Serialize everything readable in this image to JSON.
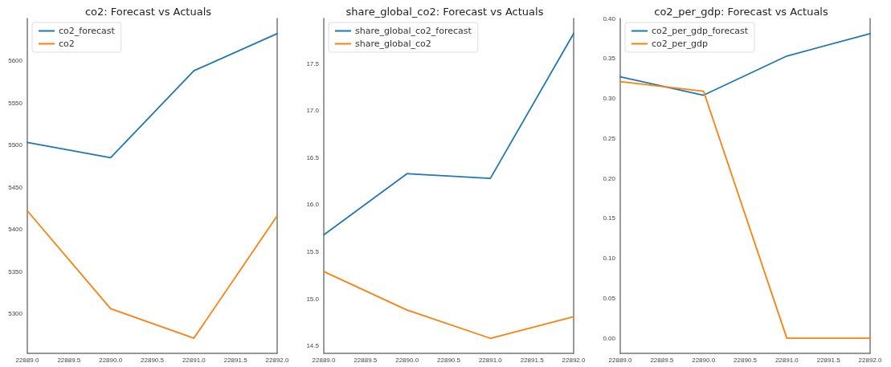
{
  "chart_data": [
    {
      "type": "line",
      "title": "co2: Forecast vs Actuals",
      "x": [
        22889,
        22890,
        22891,
        22892
      ],
      "series": [
        {
          "name": "co2_forecast",
          "color": "#1f77b4",
          "values": [
            5503,
            5485,
            5588,
            5632
          ]
        },
        {
          "name": "co2",
          "color": "#ff7f0e",
          "values": [
            5422,
            5306,
            5271,
            5416
          ]
        }
      ],
      "xlim": [
        22889,
        22892
      ],
      "xticks": [
        {
          "value": 22889,
          "label": "22889.0"
        },
        {
          "value": 22889.5,
          "label": "22889.5"
        },
        {
          "value": 22890,
          "label": "22890.0"
        },
        {
          "value": 22890.5,
          "label": "22890.5"
        },
        {
          "value": 22891,
          "label": "22891.0"
        },
        {
          "value": 22891.5,
          "label": "22891.5"
        },
        {
          "value": 22892,
          "label": "22892.0"
        }
      ],
      "ylim": [
        5253,
        5650
      ],
      "yticks": [
        5300,
        5350,
        5400,
        5450,
        5500,
        5550,
        5600
      ],
      "grid": false,
      "legend": "top left",
      "marker": "none",
      "line_style": "solid"
    },
    {
      "type": "line",
      "title": "share_global_co2: Forecast vs Actuals",
      "x": [
        22889,
        22890,
        22891,
        22892
      ],
      "series": [
        {
          "name": "share_global_co2_forecast",
          "color": "#1f77b4",
          "values": [
            15.68,
            16.33,
            16.28,
            17.82
          ]
        },
        {
          "name": "share_global_co2",
          "color": "#ff7f0e",
          "values": [
            15.29,
            14.88,
            14.58,
            14.81
          ]
        }
      ],
      "xlim": [
        22889,
        22892
      ],
      "xticks": [
        {
          "value": 22889,
          "label": "22889.0"
        },
        {
          "value": 22889.5,
          "label": "22889.5"
        },
        {
          "value": 22890,
          "label": "22890.0"
        },
        {
          "value": 22890.5,
          "label": "22890.5"
        },
        {
          "value": 22891,
          "label": "22891.0"
        },
        {
          "value": 22891.5,
          "label": "22891.5"
        },
        {
          "value": 22892,
          "label": "22892.0"
        }
      ],
      "ylim": [
        14.42,
        17.98
      ],
      "yticks": [
        {
          "value": 14.5,
          "label": "14.5"
        },
        {
          "value": 15,
          "label": "15.0"
        },
        {
          "value": 15.5,
          "label": "15.5"
        },
        {
          "value": 16,
          "label": "16.0"
        },
        {
          "value": 16.5,
          "label": "16.5"
        },
        {
          "value": 17,
          "label": "17.0"
        },
        {
          "value": 17.5,
          "label": "17.5"
        }
      ],
      "grid": false,
      "legend": "top left",
      "marker": "none",
      "line_style": "solid"
    },
    {
      "type": "line",
      "title": "co2_per_gdp: Forecast vs Actuals",
      "x": [
        22889,
        22890,
        22891,
        22892
      ],
      "series": [
        {
          "name": "co2_per_gdp_forecast",
          "color": "#1f77b4",
          "values": [
            0.327,
            0.304,
            0.353,
            0.381
          ]
        },
        {
          "name": "co2_per_gdp",
          "color": "#ff7f0e",
          "values": [
            0.321,
            0.309,
            0.0,
            0.0
          ]
        }
      ],
      "xlim": [
        22889,
        22892
      ],
      "xticks": [
        {
          "value": 22889,
          "label": "22889.0"
        },
        {
          "value": 22889.5,
          "label": "22889.5"
        },
        {
          "value": 22890,
          "label": "22890.0"
        },
        {
          "value": 22890.5,
          "label": "22890.5"
        },
        {
          "value": 22891,
          "label": "22891.0"
        },
        {
          "value": 22891.5,
          "label": "22891.5"
        },
        {
          "value": 22892,
          "label": "22892.0"
        }
      ],
      "ylim": [
        -0.019,
        0.4
      ],
      "yticks": [
        {
          "value": 0,
          "label": "0.00"
        },
        {
          "value": 0.05,
          "label": "0.05"
        },
        {
          "value": 0.1,
          "label": "0.10"
        },
        {
          "value": 0.15,
          "label": "0.15"
        },
        {
          "value": 0.2,
          "label": "0.20"
        },
        {
          "value": 0.25,
          "label": "0.25"
        },
        {
          "value": 0.3,
          "label": "0.30"
        },
        {
          "value": 0.35,
          "label": "0.35"
        },
        {
          "value": 0.4,
          "label": "0.40"
        }
      ],
      "grid": false,
      "legend": "top left",
      "marker": "none",
      "line_style": "solid"
    }
  ]
}
